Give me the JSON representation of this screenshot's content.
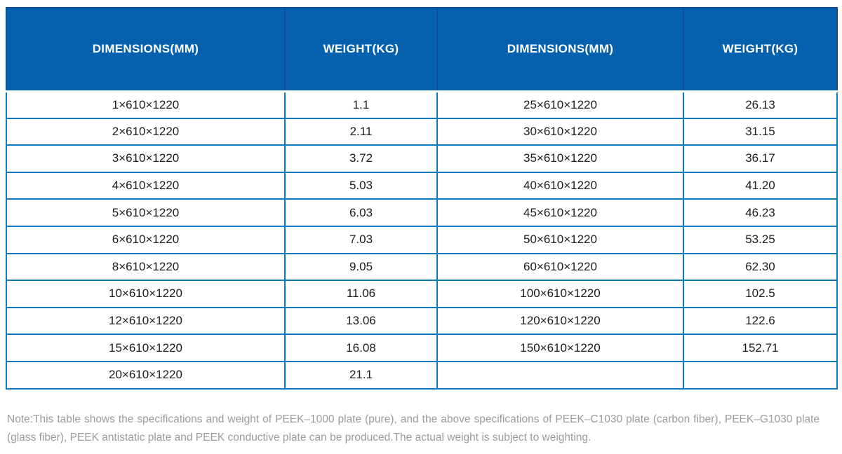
{
  "colors": {
    "header_bg": "#0561ad",
    "header_border": "#0a4f9b",
    "body_border": "#0e79c2",
    "cell_text": "#1c1c1c",
    "note_text": "#9b9b9b",
    "page_bg": "#ffffff"
  },
  "table": {
    "headers": [
      "DIMENSIONS(MM)",
      "WEIGHT(KG)",
      "DIMENSIONS(MM)",
      "WEIGHT(KG)"
    ],
    "rows": [
      [
        "1×610×1220",
        "1.1",
        "25×610×1220",
        "26.13"
      ],
      [
        "2×610×1220",
        "2.11",
        "30×610×1220",
        "31.15"
      ],
      [
        "3×610×1220",
        "3.72",
        "35×610×1220",
        "36.17"
      ],
      [
        "4×610×1220",
        "5.03",
        "40×610×1220",
        "41.20"
      ],
      [
        "5×610×1220",
        "6.03",
        "45×610×1220",
        "46.23"
      ],
      [
        "6×610×1220",
        "7.03",
        "50×610×1220",
        "53.25"
      ],
      [
        "8×610×1220",
        "9.05",
        "60×610×1220",
        "62.30"
      ],
      [
        "10×610×1220",
        "11.06",
        "100×610×1220",
        "102.5"
      ],
      [
        "12×610×1220",
        "13.06",
        "120×610×1220",
        "122.6"
      ],
      [
        "15×610×1220",
        "16.08",
        "150×610×1220",
        "152.71"
      ],
      [
        "20×610×1220",
        "21.1",
        "",
        ""
      ]
    ]
  },
  "note": "Note:This table shows the specifications and weight of PEEK–1000 plate (pure), and the above specifications of PEEK–C1030 plate (carbon fiber), PEEK–G1030 plate (glass fiber), PEEK antistatic plate and PEEK conductive plate can be produced.The actual weight is subject to weighting.",
  "chart_data": {
    "type": "table",
    "title": "",
    "columns": [
      "DIMENSIONS(MM)",
      "WEIGHT(KG)",
      "DIMENSIONS(MM)",
      "WEIGHT(KG)"
    ],
    "series": [
      {
        "name": "left-block",
        "dimensions_mm": [
          "1×610×1220",
          "2×610×1220",
          "3×610×1220",
          "4×610×1220",
          "5×610×1220",
          "6×610×1220",
          "8×610×1220",
          "10×610×1220",
          "12×610×1220",
          "15×610×1220",
          "20×610×1220"
        ],
        "weight_kg": [
          1.1,
          2.11,
          3.72,
          5.03,
          6.03,
          7.03,
          9.05,
          11.06,
          13.06,
          16.08,
          21.1
        ]
      },
      {
        "name": "right-block",
        "dimensions_mm": [
          "25×610×1220",
          "30×610×1220",
          "35×610×1220",
          "40×610×1220",
          "45×610×1220",
          "50×610×1220",
          "60×610×1220",
          "100×610×1220",
          "120×610×1220",
          "150×610×1220"
        ],
        "weight_kg": [
          26.13,
          31.15,
          36.17,
          41.2,
          46.23,
          53.25,
          62.3,
          102.5,
          122.6,
          152.71
        ]
      }
    ]
  }
}
